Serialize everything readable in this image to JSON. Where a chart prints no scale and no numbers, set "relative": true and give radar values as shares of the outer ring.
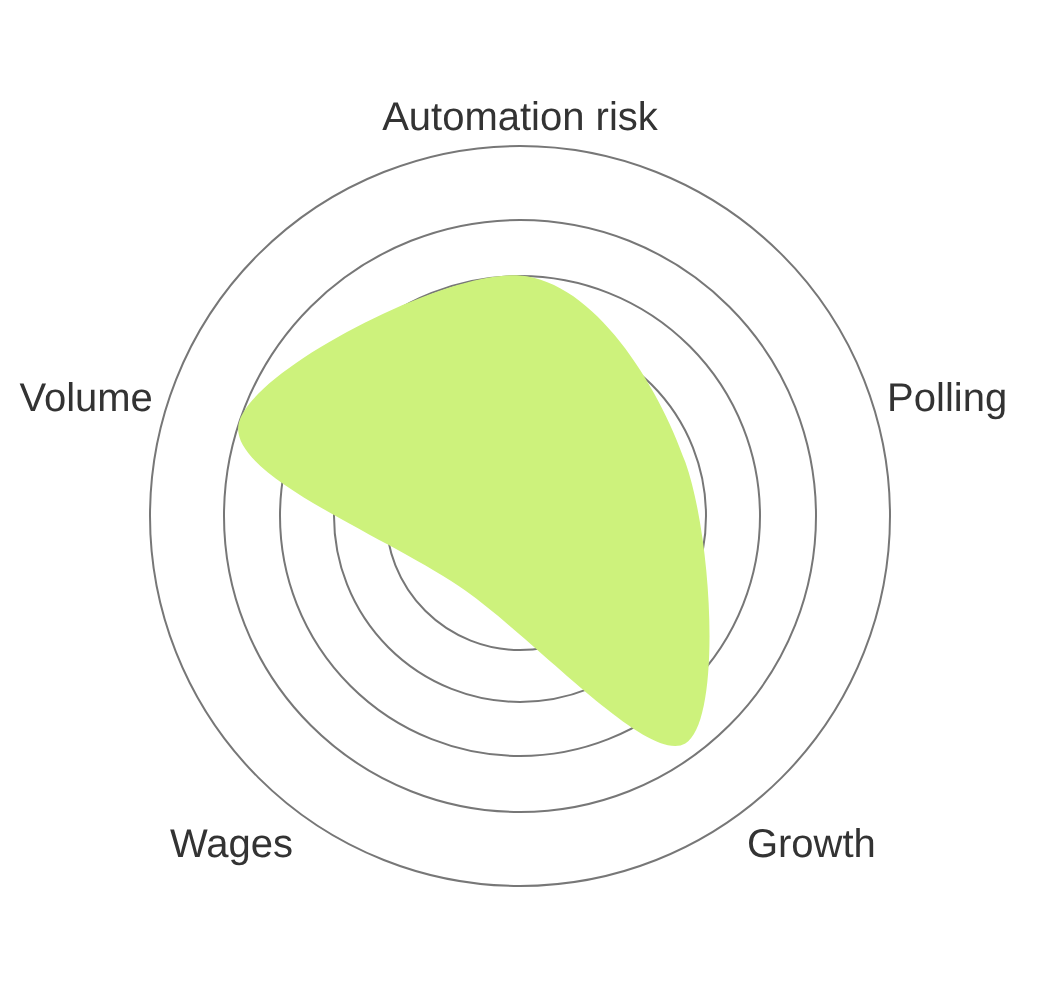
{
  "chart_data": {
    "type": "radar",
    "relative": true,
    "grid": true,
    "legend": false,
    "categories": [
      "Automation risk",
      "Polling",
      "Growth",
      "Wages",
      "Volume"
    ],
    "series": [
      {
        "color": "#cdf27c",
        "values": [
          0.65,
          0.47,
          0.76,
          0.25,
          0.8
        ]
      }
    ]
  }
}
